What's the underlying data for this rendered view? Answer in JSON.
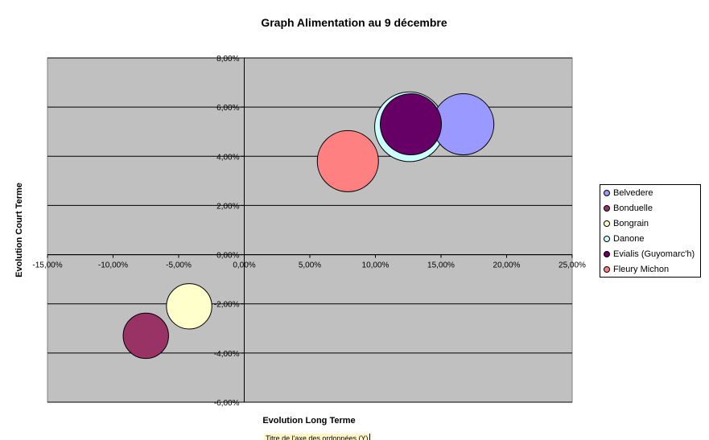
{
  "chart_data": {
    "type": "bubble",
    "title": "Graph Alimentation au 9 décembre",
    "xlabel": "Evolution Long Terme",
    "ylabel": "Evolution Court Terme",
    "xlim": [
      -0.15,
      0.25
    ],
    "ylim": [
      -0.06,
      0.08
    ],
    "x_ticks": [
      "-15,00%",
      "-10,00%",
      "-5,00%",
      "0,00%",
      "5,00%",
      "10,00%",
      "15,00%",
      "20,00%",
      "25,00%"
    ],
    "y_ticks": [
      "8,00%",
      "6,00%",
      "4,00%",
      "2,00%",
      "0,00%",
      "-2,00%",
      "-4,00%",
      "-6,00%"
    ],
    "grid": "horizontal",
    "plot_background": "#c0c0c0",
    "legend_position": "right",
    "series": [
      {
        "name": "Belvedere",
        "x": 0.167,
        "y": 0.053,
        "size": 1.0,
        "color": "#9999ff"
      },
      {
        "name": "Bonduelle",
        "x": -0.075,
        "y": -0.033,
        "size": 0.55,
        "color": "#993366"
      },
      {
        "name": "Bongrain",
        "x": -0.042,
        "y": -0.021,
        "size": 0.55,
        "color": "#ffffcc"
      },
      {
        "name": "Danone",
        "x": 0.126,
        "y": 0.052,
        "size": 1.3,
        "color": "#ccffff"
      },
      {
        "name": "Evialis (Guyomarc'h)",
        "x": 0.127,
        "y": 0.053,
        "size": 1.0,
        "color": "#660066"
      },
      {
        "name": "Fleury Michon",
        "x": 0.079,
        "y": 0.038,
        "size": 1.0,
        "color": "#ff8080"
      }
    ]
  },
  "footer_stub": "Titre de l'axe des ordonnées (Y)"
}
